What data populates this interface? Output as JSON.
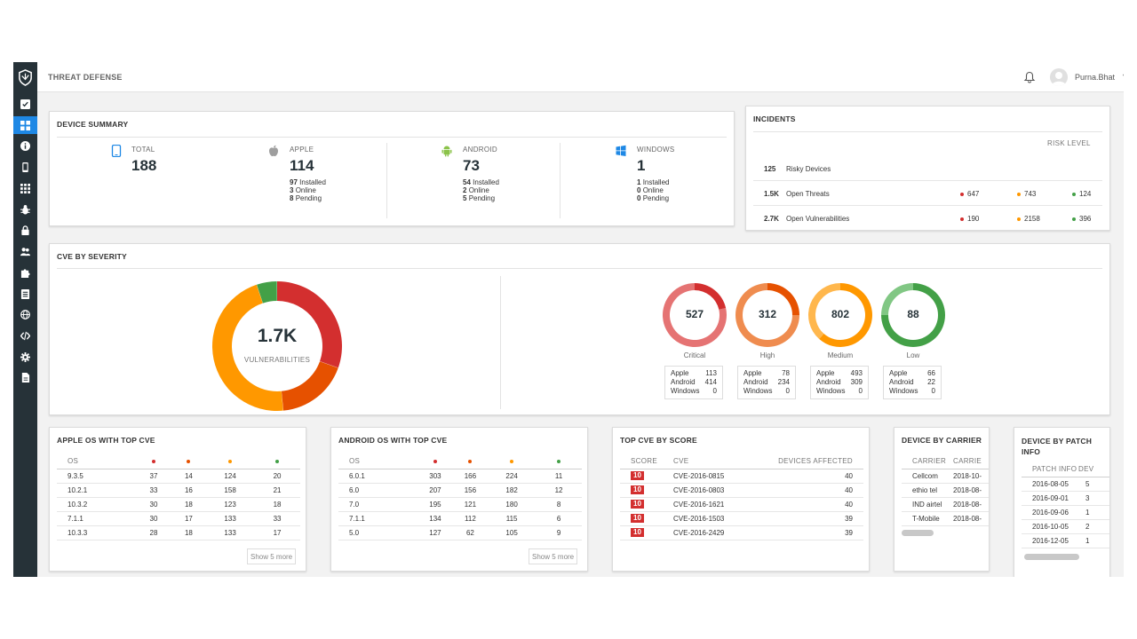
{
  "app": {
    "title": "THREAT DEFENSE",
    "user": "Purna.Bhat"
  },
  "sidebar": {
    "items": [
      "check-square-icon",
      "dashboard-icon",
      "info-icon",
      "phone-icon",
      "apps-icon",
      "bug-icon",
      "lock-icon",
      "users-icon",
      "puzzle-icon",
      "list-icon",
      "globe-icon",
      "code-icon",
      "settings-icon",
      "file-icon"
    ],
    "active": 1
  },
  "device_summary": {
    "title": "DEVICE SUMMARY",
    "total": {
      "label": "TOTAL",
      "value": "188"
    },
    "apple": {
      "label": "APPLE",
      "value": "114",
      "installed": "97",
      "online": "3",
      "pending": "8"
    },
    "android": {
      "label": "ANDROID",
      "value": "73",
      "installed": "54",
      "online": "2",
      "pending": "5"
    },
    "windows": {
      "label": "WINDOWS",
      "value": "1",
      "installed": "1",
      "online": "0",
      "pending": "0"
    },
    "sub_labels": {
      "installed": "Installed",
      "online": "Online",
      "pending": "Pending"
    }
  },
  "incidents": {
    "title": "INCIDENTS",
    "risk_header": "RISK LEVEL",
    "rows": [
      {
        "count": "125",
        "label": "Risky Devices",
        "high": "",
        "medium": "",
        "low": ""
      },
      {
        "count": "1.5K",
        "label": "Open Threats",
        "high": "647",
        "medium": "743",
        "low": "124"
      },
      {
        "count": "2.7K",
        "label": "Open Vulnerabilities",
        "high": "190",
        "medium": "2158",
        "low": "396"
      }
    ]
  },
  "cve_severity": {
    "title": "CVE BY SEVERITY",
    "donut": {
      "value": "1.7K",
      "label": "VULNERABILITIES"
    },
    "items": [
      {
        "name": "Critical",
        "value": "527",
        "apple": "113",
        "android": "414",
        "windows": "0"
      },
      {
        "name": "High",
        "value": "312",
        "apple": "78",
        "android": "234",
        "windows": "0"
      },
      {
        "name": "Medium",
        "value": "802",
        "apple": "493",
        "android": "309",
        "windows": "0"
      },
      {
        "name": "Low",
        "value": "88",
        "apple": "66",
        "android": "22",
        "windows": "0"
      }
    ],
    "platform_labels": {
      "apple": "Apple",
      "android": "Android",
      "windows": "Windows"
    }
  },
  "apple_os": {
    "title": "APPLE OS WITH TOP CVE",
    "col": "OS",
    "rows": [
      [
        "9.3.5",
        "37",
        "14",
        "124",
        "20"
      ],
      [
        "10.2.1",
        "33",
        "16",
        "158",
        "21"
      ],
      [
        "10.3.2",
        "30",
        "18",
        "123",
        "18"
      ],
      [
        "7.1.1",
        "30",
        "17",
        "133",
        "33"
      ],
      [
        "10.3.3",
        "28",
        "18",
        "133",
        "17"
      ]
    ],
    "show_more": "Show 5 more"
  },
  "android_os": {
    "title": "ANDROID OS WITH TOP CVE",
    "col": "OS",
    "rows": [
      [
        "6.0.1",
        "303",
        "166",
        "224",
        "11"
      ],
      [
        "6.0",
        "207",
        "156",
        "182",
        "12"
      ],
      [
        "7.0",
        "195",
        "121",
        "180",
        "8"
      ],
      [
        "7.1.1",
        "134",
        "112",
        "115",
        "6"
      ],
      [
        "5.0",
        "127",
        "62",
        "105",
        "9"
      ]
    ],
    "show_more": "Show 5 more"
  },
  "top_cve": {
    "title": "TOP CVE BY SCORE",
    "cols": [
      "SCORE",
      "CVE",
      "DEVICES AFFECTED"
    ],
    "rows": [
      [
        "10",
        "CVE-2016-0815",
        "40"
      ],
      [
        "10",
        "CVE-2016-0803",
        "40"
      ],
      [
        "10",
        "CVE-2016-1621",
        "40"
      ],
      [
        "10",
        "CVE-2016-1503",
        "39"
      ],
      [
        "10",
        "CVE-2016-2429",
        "39"
      ]
    ]
  },
  "carrier": {
    "title": "DEVICE BY CARRIER",
    "cols": [
      "CARRIER",
      "CARRIE"
    ],
    "rows": [
      [
        "Cellcom",
        "2018-10-"
      ],
      [
        "ethio tel",
        "2018-08-"
      ],
      [
        "IND airtel",
        "2018-08-"
      ],
      [
        "T-Mobile",
        "2018-08-"
      ]
    ]
  },
  "patch": {
    "title_line1": "DEVICE BY PATCH",
    "title_line2": "INFO",
    "cols": [
      "PATCH INFO",
      "DEV"
    ],
    "rows": [
      [
        "2016-08-05",
        "5"
      ],
      [
        "2016-09-01",
        "3"
      ],
      [
        "2016-09-06",
        "1"
      ],
      [
        "2016-10-05",
        "2"
      ],
      [
        "2016-12-05",
        "1"
      ]
    ]
  },
  "colors": {
    "critical": "#d32f2f",
    "high": "#e65100",
    "medium": "#ff9800",
    "low": "#43a047",
    "accent": "#1e88e5",
    "sidebar": "#263238"
  }
}
